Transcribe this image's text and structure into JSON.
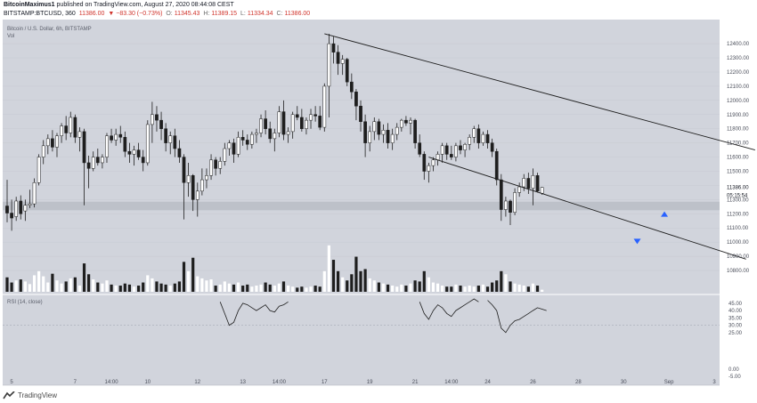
{
  "header": {
    "author": "BitcoinMaximus1",
    "published_text": "published on TradingView.com, August 27, 2020 08:44:08 CEST",
    "symbol": "BITSTAMP:BTCUSD, 360",
    "last_price": "11386.00",
    "change": "▼ −83.30 (−0.73%)",
    "o_label": "O:",
    "o_value": "11345.43",
    "h_label": "H:",
    "h_value": "11389.15",
    "l_label": "L:",
    "l_value": "11334.34",
    "c_label": "C:",
    "c_value": "11386.00"
  },
  "legend": {
    "title": "Bitcoin / U.S. Dollar, 6h, BITSTAMP",
    "vol": "Vol",
    "rsi": "RSI (14, close)"
  },
  "price_axis": {
    "labels": [
      "12400.00",
      "12300.00",
      "12200.00",
      "12100.00",
      "12000.00",
      "11900.00",
      "11800.00",
      "11700.00",
      "11600.00",
      "11500.00",
      "11400.00",
      "11300.00",
      "11200.00",
      "11100.00",
      "11000.00",
      "10900.00",
      "10800.00"
    ],
    "current_price_label": "11386.00",
    "countdown_label": "05:15:54"
  },
  "rsi_axis": {
    "labels": [
      "45.00",
      "40.00",
      "35.00",
      "30.00",
      "25.00",
      "0.00",
      "-5.00"
    ]
  },
  "time_axis": {
    "labels": [
      "5",
      "7",
      "14:00",
      "10",
      "12",
      "13",
      "14:00",
      "17",
      "19",
      "21",
      "14:00",
      "24",
      "26",
      "28",
      "30",
      "Sep",
      "3"
    ]
  },
  "footer": {
    "brand": "TradingView"
  },
  "colors": {
    "plot_bg": "#d1d4dc",
    "bull": "#ffffff",
    "bear": "#1e1e1e",
    "support_zone": "#b8bbc4",
    "arrow_up": "#2962ff",
    "arrow_down": "#2962ff",
    "line": "#1e1e1e"
  },
  "chart_data": {
    "type": "candlestick",
    "interval": "6h",
    "ylim": [
      10750,
      12520
    ],
    "rsi_ylim": [
      -8,
      48
    ],
    "support_zone": [
      11225,
      11285
    ],
    "trendlines": [
      {
        "name": "upper",
        "from": [
          70,
          12470
        ],
        "to": [
          165,
          11650
        ]
      },
      {
        "name": "lower",
        "from": [
          93,
          11600
        ],
        "to": [
          163,
          10880
        ]
      }
    ],
    "markers": [
      {
        "type": "arrow-up",
        "x": 145,
        "y": 11198
      },
      {
        "type": "arrow-down",
        "x": 139,
        "y": 11005
      }
    ],
    "candles": [
      {
        "x": 0,
        "o": 11255,
        "h": 11440,
        "l": 11140,
        "c": 11205
      },
      {
        "x": 1,
        "o": 11205,
        "h": 11300,
        "l": 11080,
        "c": 11170
      },
      {
        "x": 2,
        "o": 11180,
        "h": 11320,
        "l": 11150,
        "c": 11290
      },
      {
        "x": 3,
        "o": 11290,
        "h": 11330,
        "l": 11160,
        "c": 11200
      },
      {
        "x": 4,
        "o": 11220,
        "h": 11300,
        "l": 11150,
        "c": 11260
      },
      {
        "x": 5,
        "o": 11260,
        "h": 11370,
        "l": 11240,
        "c": 11270
      },
      {
        "x": 6,
        "o": 11270,
        "h": 11450,
        "l": 11245,
        "c": 11420
      },
      {
        "x": 7,
        "o": 11420,
        "h": 11620,
        "l": 11400,
        "c": 11600
      },
      {
        "x": 8,
        "o": 11600,
        "h": 11720,
        "l": 11550,
        "c": 11680
      },
      {
        "x": 9,
        "o": 11680,
        "h": 11760,
        "l": 11620,
        "c": 11730
      },
      {
        "x": 10,
        "o": 11730,
        "h": 11790,
        "l": 11640,
        "c": 11670
      },
      {
        "x": 11,
        "o": 11670,
        "h": 11770,
        "l": 11600,
        "c": 11750
      },
      {
        "x": 12,
        "o": 11750,
        "h": 11840,
        "l": 11700,
        "c": 11820
      },
      {
        "x": 13,
        "o": 11820,
        "h": 11890,
        "l": 11720,
        "c": 11770
      },
      {
        "x": 14,
        "o": 11770,
        "h": 11920,
        "l": 11740,
        "c": 11880
      },
      {
        "x": 15,
        "o": 11880,
        "h": 11900,
        "l": 11700,
        "c": 11740
      },
      {
        "x": 16,
        "o": 11740,
        "h": 11810,
        "l": 11640,
        "c": 11780
      },
      {
        "x": 17,
        "o": 11780,
        "h": 11800,
        "l": 11260,
        "c": 11560
      },
      {
        "x": 18,
        "o": 11560,
        "h": 11610,
        "l": 11380,
        "c": 11520
      },
      {
        "x": 19,
        "o": 11520,
        "h": 11640,
        "l": 11500,
        "c": 11600
      },
      {
        "x": 20,
        "o": 11600,
        "h": 11660,
        "l": 11540,
        "c": 11560
      },
      {
        "x": 21,
        "o": 11560,
        "h": 11620,
        "l": 11520,
        "c": 11600
      },
      {
        "x": 22,
        "o": 11600,
        "h": 11770,
        "l": 11560,
        "c": 11750
      },
      {
        "x": 23,
        "o": 11750,
        "h": 11800,
        "l": 11700,
        "c": 11720
      },
      {
        "x": 24,
        "o": 11720,
        "h": 11800,
        "l": 11680,
        "c": 11760
      },
      {
        "x": 25,
        "o": 11760,
        "h": 11820,
        "l": 11700,
        "c": 11740
      },
      {
        "x": 26,
        "o": 11740,
        "h": 11780,
        "l": 11600,
        "c": 11640
      },
      {
        "x": 27,
        "o": 11640,
        "h": 11700,
        "l": 11560,
        "c": 11620
      },
      {
        "x": 28,
        "o": 11620,
        "h": 11680,
        "l": 11540,
        "c": 11650
      },
      {
        "x": 29,
        "o": 11650,
        "h": 11700,
        "l": 11580,
        "c": 11600
      },
      {
        "x": 30,
        "o": 11600,
        "h": 11650,
        "l": 11500,
        "c": 11560
      },
      {
        "x": 31,
        "o": 11560,
        "h": 11860,
        "l": 11540,
        "c": 11830
      },
      {
        "x": 32,
        "o": 11830,
        "h": 11990,
        "l": 11700,
        "c": 11900
      },
      {
        "x": 33,
        "o": 11900,
        "h": 11960,
        "l": 11780,
        "c": 11860
      },
      {
        "x": 34,
        "o": 11860,
        "h": 11920,
        "l": 11720,
        "c": 11800
      },
      {
        "x": 35,
        "o": 11800,
        "h": 11840,
        "l": 11640,
        "c": 11700
      },
      {
        "x": 36,
        "o": 11700,
        "h": 11780,
        "l": 11620,
        "c": 11750
      },
      {
        "x": 37,
        "o": 11750,
        "h": 11800,
        "l": 11600,
        "c": 11660
      },
      {
        "x": 38,
        "o": 11660,
        "h": 11720,
        "l": 11560,
        "c": 11600
      },
      {
        "x": 39,
        "o": 11600,
        "h": 11620,
        "l": 11160,
        "c": 11420
      },
      {
        "x": 40,
        "o": 11420,
        "h": 11560,
        "l": 11320,
        "c": 11470
      },
      {
        "x": 41,
        "o": 11470,
        "h": 11480,
        "l": 11220,
        "c": 11300
      },
      {
        "x": 42,
        "o": 11300,
        "h": 11420,
        "l": 11180,
        "c": 11360
      },
      {
        "x": 43,
        "o": 11360,
        "h": 11520,
        "l": 11330,
        "c": 11440
      },
      {
        "x": 44,
        "o": 11440,
        "h": 11520,
        "l": 11380,
        "c": 11470
      },
      {
        "x": 45,
        "o": 11470,
        "h": 11620,
        "l": 11440,
        "c": 11580
      },
      {
        "x": 46,
        "o": 11580,
        "h": 11600,
        "l": 11470,
        "c": 11520
      },
      {
        "x": 47,
        "o": 11520,
        "h": 11600,
        "l": 11480,
        "c": 11570
      },
      {
        "x": 48,
        "o": 11570,
        "h": 11700,
        "l": 11540,
        "c": 11660
      },
      {
        "x": 49,
        "o": 11660,
        "h": 11720,
        "l": 11610,
        "c": 11700
      },
      {
        "x": 50,
        "o": 11700,
        "h": 11730,
        "l": 11560,
        "c": 11620
      },
      {
        "x": 51,
        "o": 11620,
        "h": 11780,
        "l": 11600,
        "c": 11740
      },
      {
        "x": 52,
        "o": 11740,
        "h": 11790,
        "l": 11680,
        "c": 11720
      },
      {
        "x": 53,
        "o": 11720,
        "h": 11760,
        "l": 11650,
        "c": 11690
      },
      {
        "x": 54,
        "o": 11690,
        "h": 11780,
        "l": 11660,
        "c": 11760
      },
      {
        "x": 55,
        "o": 11760,
        "h": 11800,
        "l": 11700,
        "c": 11770
      },
      {
        "x": 56,
        "o": 11770,
        "h": 11900,
        "l": 11740,
        "c": 11870
      },
      {
        "x": 57,
        "o": 11870,
        "h": 11930,
        "l": 11760,
        "c": 11800
      },
      {
        "x": 58,
        "o": 11800,
        "h": 11850,
        "l": 11700,
        "c": 11730
      },
      {
        "x": 59,
        "o": 11730,
        "h": 11800,
        "l": 11640,
        "c": 11770
      },
      {
        "x": 60,
        "o": 11770,
        "h": 11960,
        "l": 11740,
        "c": 11920
      },
      {
        "x": 61,
        "o": 11920,
        "h": 12000,
        "l": 11720,
        "c": 11760
      },
      {
        "x": 62,
        "o": 11760,
        "h": 11810,
        "l": 11700,
        "c": 11780
      },
      {
        "x": 63,
        "o": 11780,
        "h": 11920,
        "l": 11730,
        "c": 11900
      },
      {
        "x": 64,
        "o": 11900,
        "h": 11960,
        "l": 11860,
        "c": 11880
      },
      {
        "x": 65,
        "o": 11880,
        "h": 11940,
        "l": 11780,
        "c": 11800
      },
      {
        "x": 66,
        "o": 11800,
        "h": 11880,
        "l": 11760,
        "c": 11860
      },
      {
        "x": 67,
        "o": 11860,
        "h": 11940,
        "l": 11800,
        "c": 11900
      },
      {
        "x": 68,
        "o": 11900,
        "h": 11960,
        "l": 11850,
        "c": 11890
      },
      {
        "x": 69,
        "o": 11890,
        "h": 11960,
        "l": 11790,
        "c": 11810
      },
      {
        "x": 70,
        "o": 11810,
        "h": 12120,
        "l": 11780,
        "c": 12100
      },
      {
        "x": 71,
        "o": 12100,
        "h": 12470,
        "l": 11880,
        "c": 12400
      },
      {
        "x": 72,
        "o": 12400,
        "h": 12450,
        "l": 12260,
        "c": 12340
      },
      {
        "x": 73,
        "o": 12340,
        "h": 12390,
        "l": 12180,
        "c": 12260
      },
      {
        "x": 74,
        "o": 12260,
        "h": 12320,
        "l": 12180,
        "c": 12290
      },
      {
        "x": 75,
        "o": 12290,
        "h": 12300,
        "l": 12100,
        "c": 12130
      },
      {
        "x": 76,
        "o": 12130,
        "h": 12190,
        "l": 12010,
        "c": 12060
      },
      {
        "x": 77,
        "o": 12060,
        "h": 12080,
        "l": 11860,
        "c": 11960
      },
      {
        "x": 78,
        "o": 11960,
        "h": 12000,
        "l": 11780,
        "c": 11850
      },
      {
        "x": 79,
        "o": 11850,
        "h": 11900,
        "l": 11600,
        "c": 11700
      },
      {
        "x": 80,
        "o": 11700,
        "h": 11820,
        "l": 11640,
        "c": 11780
      },
      {
        "x": 81,
        "o": 11780,
        "h": 11880,
        "l": 11720,
        "c": 11850
      },
      {
        "x": 82,
        "o": 11850,
        "h": 11870,
        "l": 11720,
        "c": 11760
      },
      {
        "x": 83,
        "o": 11760,
        "h": 11830,
        "l": 11700,
        "c": 11790
      },
      {
        "x": 84,
        "o": 11790,
        "h": 11840,
        "l": 11660,
        "c": 11700
      },
      {
        "x": 85,
        "o": 11700,
        "h": 11800,
        "l": 11650,
        "c": 11760
      },
      {
        "x": 86,
        "o": 11760,
        "h": 11840,
        "l": 11720,
        "c": 11810
      },
      {
        "x": 87,
        "o": 11810,
        "h": 11870,
        "l": 11780,
        "c": 11860
      },
      {
        "x": 88,
        "o": 11860,
        "h": 11890,
        "l": 11820,
        "c": 11840
      },
      {
        "x": 89,
        "o": 11840,
        "h": 11880,
        "l": 11760,
        "c": 11860
      },
      {
        "x": 90,
        "o": 11860,
        "h": 11870,
        "l": 11660,
        "c": 11700
      },
      {
        "x": 91,
        "o": 11700,
        "h": 11760,
        "l": 11600,
        "c": 11620
      },
      {
        "x": 92,
        "o": 11620,
        "h": 11640,
        "l": 11440,
        "c": 11500
      },
      {
        "x": 93,
        "o": 11500,
        "h": 11560,
        "l": 11420,
        "c": 11540
      },
      {
        "x": 94,
        "o": 11540,
        "h": 11600,
        "l": 11500,
        "c": 11580
      },
      {
        "x": 95,
        "o": 11580,
        "h": 11640,
        "l": 11540,
        "c": 11620
      },
      {
        "x": 96,
        "o": 11620,
        "h": 11700,
        "l": 11560,
        "c": 11680
      },
      {
        "x": 97,
        "o": 11680,
        "h": 11700,
        "l": 11580,
        "c": 11620
      },
      {
        "x": 98,
        "o": 11620,
        "h": 11680,
        "l": 11580,
        "c": 11600
      },
      {
        "x": 99,
        "o": 11600,
        "h": 11700,
        "l": 11570,
        "c": 11680
      },
      {
        "x": 100,
        "o": 11680,
        "h": 11720,
        "l": 11620,
        "c": 11650
      },
      {
        "x": 101,
        "o": 11650,
        "h": 11700,
        "l": 11600,
        "c": 11690
      },
      {
        "x": 102,
        "o": 11690,
        "h": 11760,
        "l": 11650,
        "c": 11740
      },
      {
        "x": 103,
        "o": 11740,
        "h": 11820,
        "l": 11700,
        "c": 11800
      },
      {
        "x": 104,
        "o": 11800,
        "h": 11830,
        "l": 11660,
        "c": 11700
      },
      {
        "x": 105,
        "o": 11700,
        "h": 11780,
        "l": 11680,
        "c": 11760
      },
      {
        "x": 106,
        "o": 11760,
        "h": 11790,
        "l": 11660,
        "c": 11700
      },
      {
        "x": 107,
        "o": 11700,
        "h": 11730,
        "l": 11600,
        "c": 11640
      },
      {
        "x": 108,
        "o": 11640,
        "h": 11660,
        "l": 11400,
        "c": 11440
      },
      {
        "x": 109,
        "o": 11440,
        "h": 11480,
        "l": 11150,
        "c": 11230
      },
      {
        "x": 110,
        "o": 11230,
        "h": 11320,
        "l": 11180,
        "c": 11290
      },
      {
        "x": 111,
        "o": 11290,
        "h": 11300,
        "l": 11120,
        "c": 11210
      },
      {
        "x": 112,
        "o": 11210,
        "h": 11380,
        "l": 11190,
        "c": 11350
      },
      {
        "x": 113,
        "o": 11350,
        "h": 11420,
        "l": 11320,
        "c": 11390
      },
      {
        "x": 114,
        "o": 11390,
        "h": 11480,
        "l": 11360,
        "c": 11450
      },
      {
        "x": 115,
        "o": 11450,
        "h": 11490,
        "l": 11340,
        "c": 11380
      },
      {
        "x": 116,
        "o": 11380,
        "h": 11520,
        "l": 11260,
        "c": 11470
      },
      {
        "x": 117,
        "o": 11470,
        "h": 11490,
        "l": 11350,
        "c": 11360
      },
      {
        "x": 118,
        "o": 11345,
        "h": 11389,
        "l": 11334,
        "c": 11386
      }
    ],
    "volume": [
      0.28,
      0.18,
      0.22,
      0.24,
      0.2,
      0.15,
      0.32,
      0.4,
      0.3,
      0.18,
      0.35,
      0.22,
      0.16,
      0.2,
      0.26,
      0.28,
      0.12,
      0.55,
      0.34,
      0.24,
      0.18,
      0.16,
      0.22,
      0.14,
      0.12,
      0.12,
      0.16,
      0.14,
      0.1,
      0.12,
      0.18,
      0.32,
      0.26,
      0.2,
      0.16,
      0.14,
      0.12,
      0.16,
      0.2,
      0.58,
      0.4,
      0.66,
      0.3,
      0.26,
      0.22,
      0.24,
      0.12,
      0.14,
      0.2,
      0.16,
      0.14,
      0.18,
      0.12,
      0.14,
      0.1,
      0.12,
      0.14,
      0.18,
      0.14,
      0.12,
      0.16,
      0.2,
      0.12,
      0.1,
      0.08,
      0.1,
      0.08,
      0.1,
      0.12,
      0.1,
      0.4,
      0.9,
      0.62,
      0.4,
      0.28,
      0.22,
      0.34,
      0.68,
      0.4,
      0.44,
      0.26,
      0.22,
      0.18,
      0.16,
      0.14,
      0.12,
      0.1,
      0.14,
      0.12,
      0.16,
      0.22,
      0.2,
      0.4,
      0.28,
      0.18,
      0.16,
      0.12,
      0.1,
      0.1,
      0.14,
      0.12,
      0.1,
      0.12,
      0.1,
      0.12,
      0.14,
      0.1,
      0.18,
      0.22,
      0.4,
      0.34,
      0.2,
      0.16,
      0.14,
      0.12,
      0.1,
      0.16,
      0.12,
      0.04
    ],
    "rsi_segments": [
      {
        "from": 47,
        "values": [
          46,
          38,
          30,
          32,
          40,
          45,
          44,
          42,
          40,
          42,
          44,
          40,
          39,
          43,
          44,
          46
        ]
      },
      {
        "from": 91,
        "values": [
          46,
          38,
          34,
          40,
          44,
          42,
          38,
          36,
          40,
          42,
          44,
          46,
          48,
          46
        ]
      },
      {
        "from": 106,
        "values": [
          47,
          44,
          40,
          28,
          25,
          30,
          33,
          34,
          36,
          38,
          40,
          42,
          41,
          40
        ]
      }
    ]
  }
}
